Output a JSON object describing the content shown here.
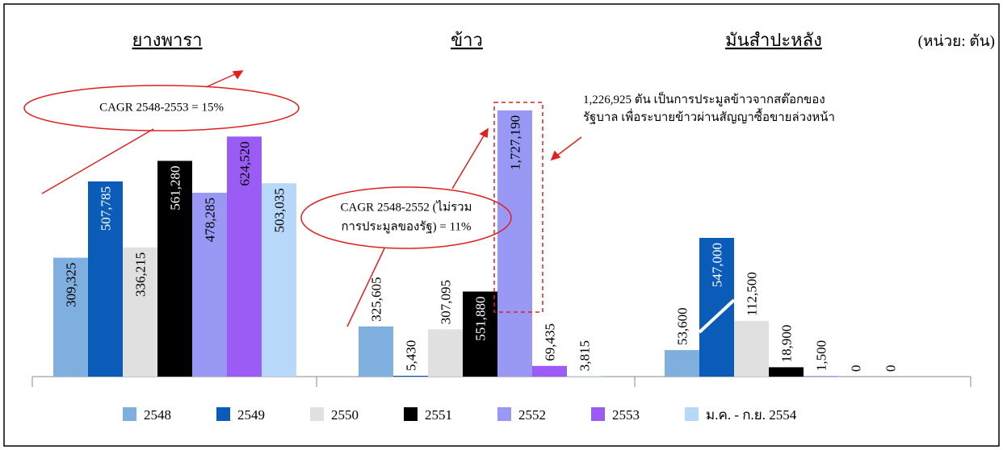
{
  "chart_data": {
    "type": "bar",
    "categories": [
      "ยางพารา",
      "ข้าว",
      "มันสำปะหลัง"
    ],
    "unit_label": "(หน่วย: ตัน)",
    "ylim": [
      [
        0,
        770000
      ],
      [
        0,
        1920000
      ],
      [
        0,
        280000
      ]
    ],
    "series": [
      {
        "name": "2548",
        "color": "#7fafdf",
        "values": [
          309325,
          325605,
          53600
        ],
        "value_labels": [
          "309,325",
          "325,605",
          "53,600"
        ]
      },
      {
        "name": "2549",
        "color": "#0a5cb8",
        "values": [
          507785,
          5430,
          547000
        ],
        "value_labels": [
          "507,785",
          "5,430",
          "547,000"
        ]
      },
      {
        "name": "2550",
        "color": "#e0e0e0",
        "values": [
          336215,
          307095,
          112500
        ],
        "value_labels": [
          "336,215",
          "307,095",
          "112,500"
        ]
      },
      {
        "name": "2551",
        "color": "#000000",
        "values": [
          561280,
          551880,
          18900
        ],
        "value_labels": [
          "561,280",
          "551,880",
          "18,900"
        ]
      },
      {
        "name": "2552",
        "color": "#9999f5",
        "values": [
          478285,
          1727190,
          1500
        ],
        "value_labels": [
          "478,285",
          "1,727,190",
          "1,500"
        ]
      },
      {
        "name": "2553",
        "color": "#9a5cf5",
        "values": [
          624520,
          69435,
          0
        ],
        "value_labels": [
          "624,520",
          "69,435",
          "0"
        ]
      },
      {
        "name": "ม.ค. - ก.ย. 2554",
        "color": "#b8d8fa",
        "values": [
          503035,
          3815,
          0
        ],
        "value_labels": [
          "503,035",
          "3,815",
          "0"
        ]
      }
    ],
    "annotations": [
      "CAGR 2548-2553 = 15%",
      [
        "CAGR 2548-2552 (ไม่รวม",
        "การประมูลของรัฐ) = 11%"
      ],
      [
        "1,226,925 ตัน เป็นการประมูลข้าวจากสต๊อกของ",
        "รัฐบาล เพื่อระบายข้าวผ่านสัญญาซื้อขายล่วงหน้า"
      ]
    ]
  }
}
